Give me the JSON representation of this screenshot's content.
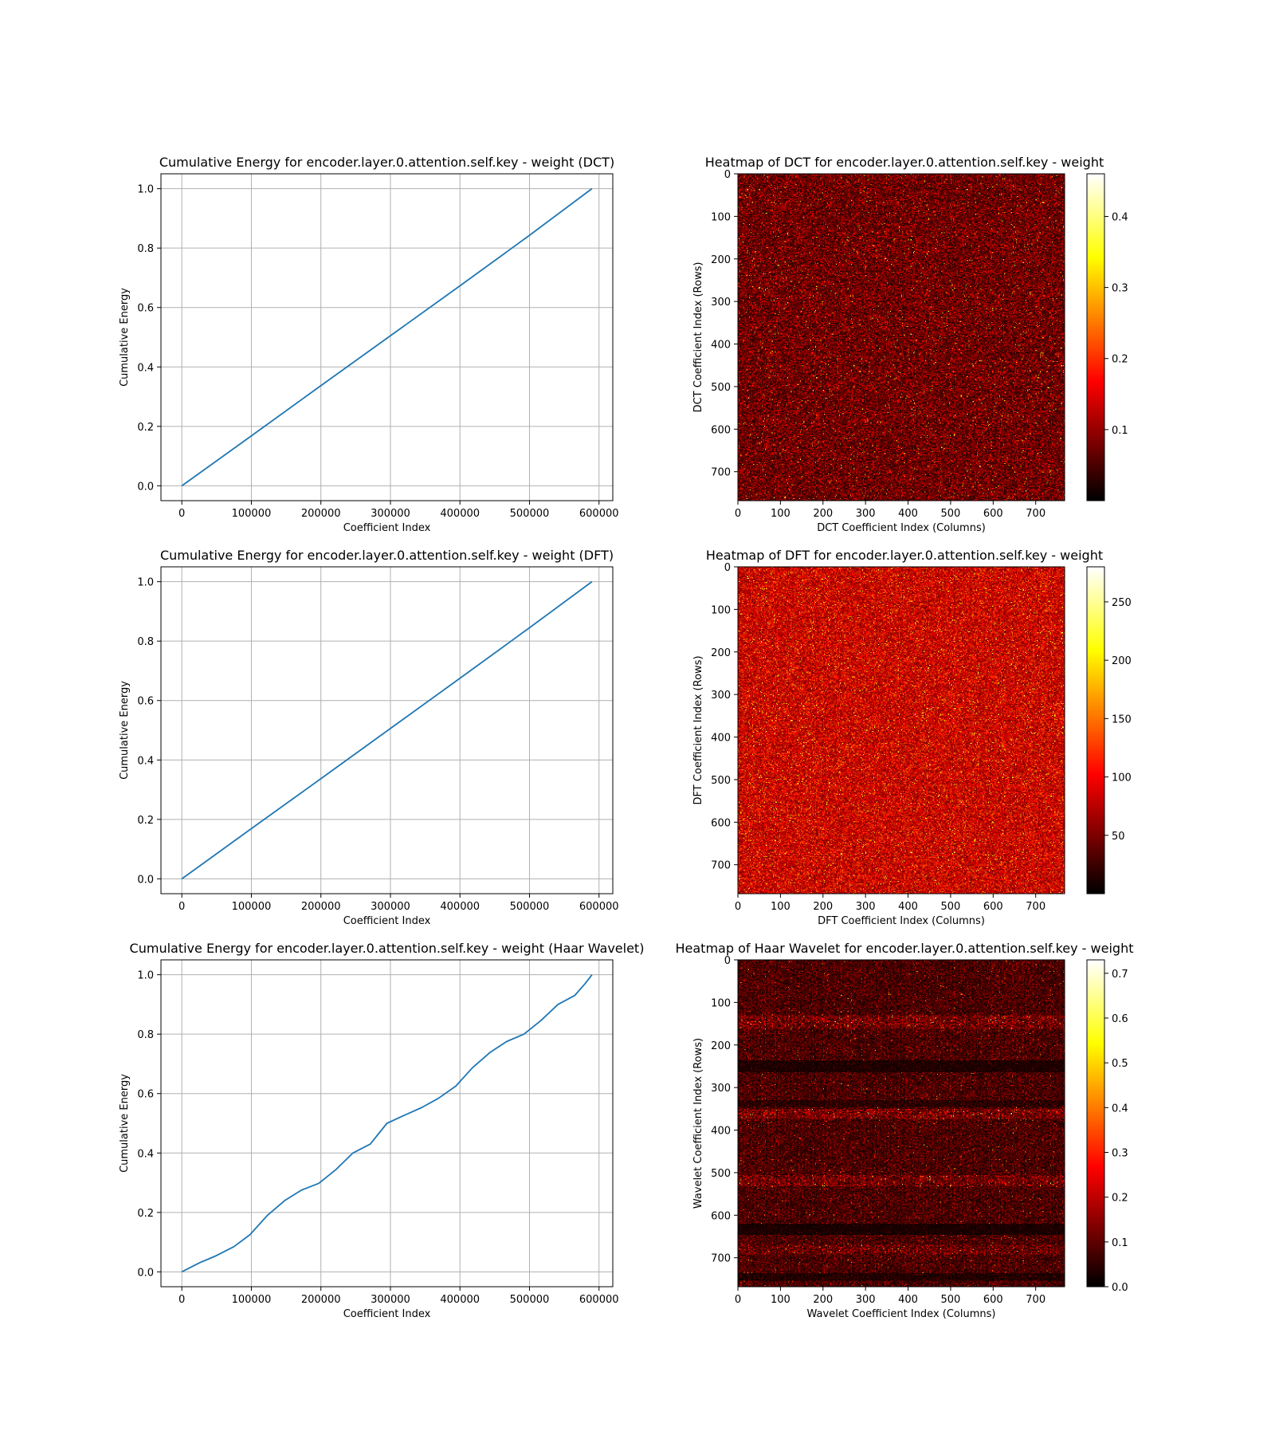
{
  "chart_data": [
    {
      "type": "line",
      "title": "Cumulative Energy for encoder.layer.0.attention.self.key - weight (DCT)",
      "xlabel": "Coefficient Index",
      "ylabel": "Cumulative Energy",
      "xlim": [
        -30000,
        619800
      ],
      "ylim": [
        -0.05,
        1.05
      ],
      "xticks": [
        0,
        100000,
        200000,
        300000,
        400000,
        500000,
        600000
      ],
      "xtick_labels": [
        "0",
        "100000",
        "200000",
        "300000",
        "400000",
        "500000",
        "600000"
      ],
      "yticks": [
        0.0,
        0.2,
        0.4,
        0.6,
        0.8,
        1.0
      ],
      "ytick_labels": [
        "0.0",
        "0.2",
        "0.4",
        "0.6",
        "0.8",
        "1.0"
      ],
      "grid": true,
      "color": "#1f77b4",
      "x": [
        0,
        100000,
        200000,
        300000,
        400000,
        500000,
        589824
      ],
      "y": [
        0.0,
        0.168,
        0.337,
        0.505,
        0.673,
        0.843,
        1.0
      ]
    },
    {
      "type": "heatmap",
      "title": "Heatmap of DCT for encoder.layer.0.attention.self.key - weight",
      "xlabel": "DCT Coefficient Index (Columns)",
      "ylabel": "DCT Coefficient Index (Rows)",
      "xticks": [
        0,
        100,
        200,
        300,
        400,
        500,
        600,
        700
      ],
      "xtick_labels": [
        "0",
        "100",
        "200",
        "300",
        "400",
        "500",
        "600",
        "700"
      ],
      "yticks": [
        0,
        100,
        200,
        300,
        400,
        500,
        600,
        700
      ],
      "ytick_labels": [
        "0",
        "100",
        "200",
        "300",
        "400",
        "500",
        "600",
        "700"
      ],
      "rows": 768,
      "cols": 768,
      "colormap": "hot",
      "vmin": 0.0,
      "vmax": 0.46,
      "value_profile": "uniform noise, mostly dark red with scattered bright speckles",
      "colorbar_ticks": [
        0.1,
        0.2,
        0.3,
        0.4
      ],
      "colorbar_tick_labels": [
        "0.1",
        "0.2",
        "0.3",
        "0.4"
      ]
    },
    {
      "type": "line",
      "title": "Cumulative Energy for encoder.layer.0.attention.self.key - weight (DFT)",
      "xlabel": "Coefficient Index",
      "ylabel": "Cumulative Energy",
      "xlim": [
        -30000,
        619800
      ],
      "ylim": [
        -0.05,
        1.05
      ],
      "xticks": [
        0,
        100000,
        200000,
        300000,
        400000,
        500000,
        600000
      ],
      "xtick_labels": [
        "0",
        "100000",
        "200000",
        "300000",
        "400000",
        "500000",
        "600000"
      ],
      "yticks": [
        0.0,
        0.2,
        0.4,
        0.6,
        0.8,
        1.0
      ],
      "ytick_labels": [
        "0.0",
        "0.2",
        "0.4",
        "0.6",
        "0.8",
        "1.0"
      ],
      "grid": true,
      "color": "#1f77b4",
      "x": [
        0,
        100000,
        200000,
        300000,
        400000,
        500000,
        589824
      ],
      "y": [
        0.0,
        0.169,
        0.337,
        0.506,
        0.675,
        0.845,
        1.0
      ]
    },
    {
      "type": "heatmap",
      "title": "Heatmap of DFT for encoder.layer.0.attention.self.key - weight",
      "xlabel": "DFT Coefficient Index (Columns)",
      "ylabel": "DFT Coefficient Index (Rows)",
      "xticks": [
        0,
        100,
        200,
        300,
        400,
        500,
        600,
        700
      ],
      "xtick_labels": [
        "0",
        "100",
        "200",
        "300",
        "400",
        "500",
        "600",
        "700"
      ],
      "yticks": [
        0,
        100,
        200,
        300,
        400,
        500,
        600,
        700
      ],
      "ytick_labels": [
        "0",
        "100",
        "200",
        "300",
        "400",
        "500",
        "600",
        "700"
      ],
      "rows": 768,
      "cols": 768,
      "colormap": "hot",
      "vmin": 0,
      "vmax": 280,
      "value_profile": "uniform noise, red with orange and yellow speckles",
      "colorbar_ticks": [
        50,
        100,
        150,
        200,
        250
      ],
      "colorbar_tick_labels": [
        "50",
        "100",
        "150",
        "200",
        "250"
      ]
    },
    {
      "type": "line",
      "title": "Cumulative Energy for encoder.layer.0.attention.self.key - weight (Haar Wavelet)",
      "xlabel": "Coefficient Index",
      "ylabel": "Cumulative Energy",
      "xlim": [
        -30000,
        619800
      ],
      "ylim": [
        -0.05,
        1.05
      ],
      "xticks": [
        0,
        100000,
        200000,
        300000,
        400000,
        500000,
        600000
      ],
      "xtick_labels": [
        "0",
        "100000",
        "200000",
        "300000",
        "400000",
        "500000",
        "600000"
      ],
      "yticks": [
        0.0,
        0.2,
        0.4,
        0.6,
        0.8,
        1.0
      ],
      "ytick_labels": [
        "0.0",
        "0.2",
        "0.4",
        "0.6",
        "0.8",
        "1.0"
      ],
      "grid": true,
      "color": "#1f77b4",
      "x": [
        0,
        25000,
        50000,
        75000,
        98000,
        123000,
        148000,
        172000,
        197000,
        222000,
        246000,
        271000,
        295000,
        320000,
        345000,
        369000,
        394000,
        418000,
        443000,
        467000,
        492000,
        516000,
        541000,
        565000,
        580000,
        589824
      ],
      "y": [
        0.0,
        0.03,
        0.055,
        0.085,
        0.125,
        0.19,
        0.24,
        0.275,
        0.298,
        0.345,
        0.4,
        0.43,
        0.5,
        0.527,
        0.553,
        0.584,
        0.625,
        0.687,
        0.738,
        0.775,
        0.8,
        0.845,
        0.9,
        0.93,
        0.97,
        1.0
      ]
    },
    {
      "type": "heatmap",
      "title": "Heatmap of Haar Wavelet for encoder.layer.0.attention.self.key - weight",
      "xlabel": "Wavelet Coefficient Index (Columns)",
      "ylabel": "Wavelet Coefficient Index (Rows)",
      "xticks": [
        0,
        100,
        200,
        300,
        400,
        500,
        600,
        700
      ],
      "xtick_labels": [
        "0",
        "100",
        "200",
        "300",
        "400",
        "500",
        "600",
        "700"
      ],
      "yticks": [
        0,
        100,
        200,
        300,
        400,
        500,
        600,
        700
      ],
      "ytick_labels": [
        "0",
        "100",
        "200",
        "300",
        "400",
        "500",
        "600",
        "700"
      ],
      "rows": 768,
      "cols": 768,
      "colormap": "hot",
      "vmin": 0.0,
      "vmax": 0.73,
      "value_profile": "dark noise with bright horizontal bands near rows 140, 360, 520, 680 and dark bands near rows 250, 340, 635, 740",
      "colorbar_ticks": [
        0.0,
        0.1,
        0.2,
        0.3,
        0.4,
        0.5,
        0.6,
        0.7
      ],
      "colorbar_tick_labels": [
        "0.0",
        "0.1",
        "0.2",
        "0.3",
        "0.4",
        "0.5",
        "0.6",
        "0.7"
      ]
    }
  ]
}
